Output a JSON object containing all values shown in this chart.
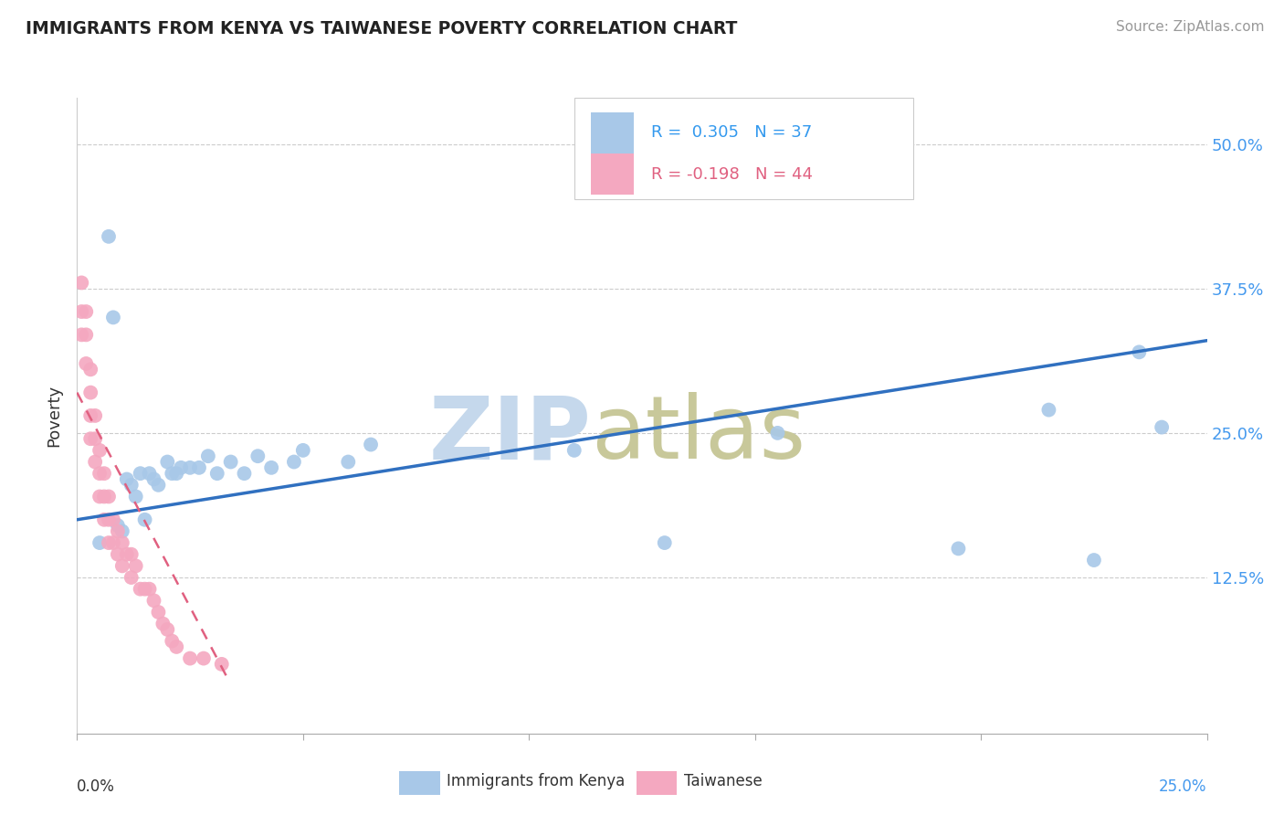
{
  "title": "IMMIGRANTS FROM KENYA VS TAIWANESE POVERTY CORRELATION CHART",
  "source": "Source: ZipAtlas.com",
  "ylabel": "Poverty",
  "xlim": [
    0.0,
    0.25
  ],
  "ylim": [
    -0.01,
    0.54
  ],
  "kenya_R": 0.305,
  "kenya_N": 37,
  "taiwan_R": -0.198,
  "taiwan_N": 44,
  "kenya_color": "#a8c8e8",
  "taiwan_color": "#f4a8c0",
  "kenya_line_color": "#3070c0",
  "taiwan_line_color": "#e06080",
  "watermark_zip_color": "#c5d8ec",
  "watermark_atlas_color": "#c8c89a",
  "background_color": "#ffffff",
  "kenya_x": [
    0.005,
    0.007,
    0.008,
    0.009,
    0.01,
    0.011,
    0.012,
    0.013,
    0.014,
    0.015,
    0.016,
    0.017,
    0.018,
    0.02,
    0.021,
    0.022,
    0.023,
    0.025,
    0.027,
    0.029,
    0.031,
    0.034,
    0.037,
    0.04,
    0.043,
    0.048,
    0.05,
    0.06,
    0.065,
    0.11,
    0.13,
    0.155,
    0.195,
    0.215,
    0.225,
    0.235,
    0.24
  ],
  "kenya_y": [
    0.155,
    0.42,
    0.35,
    0.17,
    0.165,
    0.21,
    0.205,
    0.195,
    0.215,
    0.175,
    0.215,
    0.21,
    0.205,
    0.225,
    0.215,
    0.215,
    0.22,
    0.22,
    0.22,
    0.23,
    0.215,
    0.225,
    0.215,
    0.23,
    0.22,
    0.225,
    0.235,
    0.225,
    0.24,
    0.235,
    0.155,
    0.25,
    0.15,
    0.27,
    0.14,
    0.32,
    0.255
  ],
  "taiwan_x": [
    0.001,
    0.001,
    0.001,
    0.002,
    0.002,
    0.002,
    0.003,
    0.003,
    0.003,
    0.003,
    0.004,
    0.004,
    0.004,
    0.005,
    0.005,
    0.005,
    0.006,
    0.006,
    0.006,
    0.007,
    0.007,
    0.007,
    0.008,
    0.008,
    0.009,
    0.009,
    0.01,
    0.01,
    0.011,
    0.012,
    0.012,
    0.013,
    0.014,
    0.015,
    0.016,
    0.017,
    0.018,
    0.019,
    0.02,
    0.021,
    0.022,
    0.025,
    0.028,
    0.032
  ],
  "taiwan_y": [
    0.38,
    0.355,
    0.335,
    0.355,
    0.335,
    0.31,
    0.305,
    0.285,
    0.265,
    0.245,
    0.265,
    0.245,
    0.225,
    0.235,
    0.215,
    0.195,
    0.215,
    0.195,
    0.175,
    0.195,
    0.175,
    0.155,
    0.175,
    0.155,
    0.165,
    0.145,
    0.155,
    0.135,
    0.145,
    0.145,
    0.125,
    0.135,
    0.115,
    0.115,
    0.115,
    0.105,
    0.095,
    0.085,
    0.08,
    0.07,
    0.065,
    0.055,
    0.055,
    0.05
  ],
  "kenya_trend_x": [
    0.0,
    0.25
  ],
  "kenya_trend_y": [
    0.175,
    0.33
  ],
  "taiwan_trend_x": [
    0.0,
    0.033
  ],
  "taiwan_trend_y": [
    0.285,
    0.04
  ]
}
